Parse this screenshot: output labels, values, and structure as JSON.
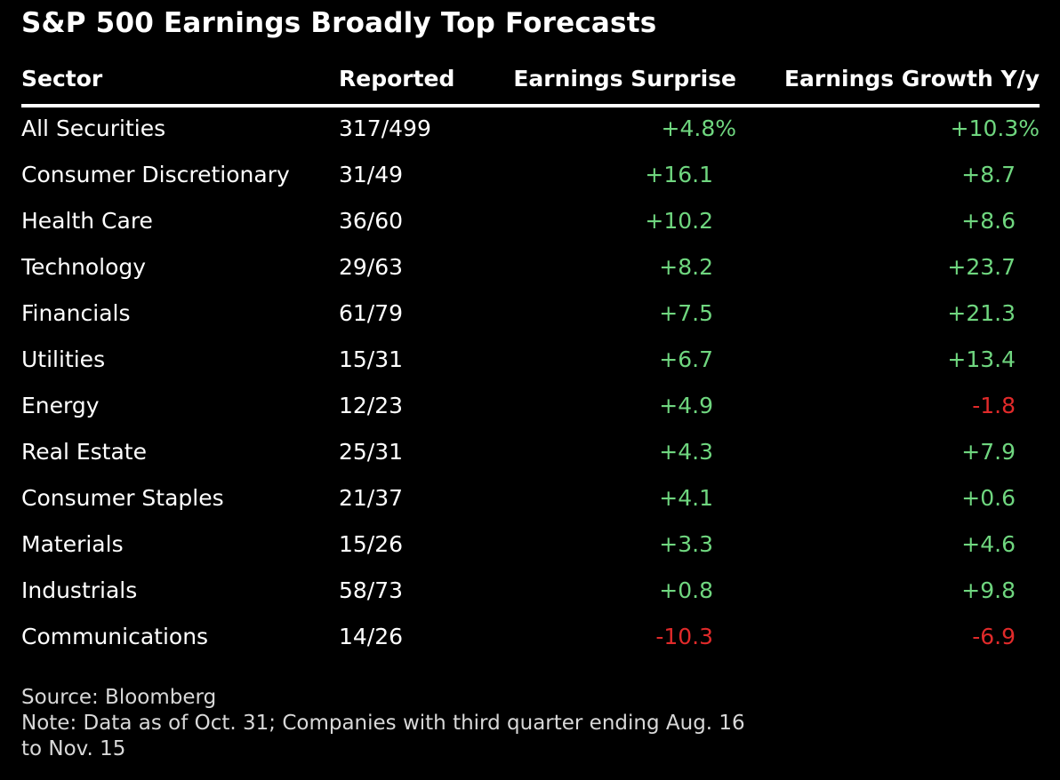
{
  "chart_data": {
    "type": "table",
    "title": "S&P 500 Earnings Broadly Top Forecasts",
    "columns": [
      "Sector",
      "Reported",
      "Earnings Surprise",
      "Earnings Growth Y/y"
    ],
    "rows": [
      {
        "sector": "All Securities",
        "reported": "317/499",
        "surprise": "+4.8%",
        "growth": "+10.3%"
      },
      {
        "sector": "Consumer Discretionary",
        "reported": "31/49",
        "surprise": "+16.1",
        "growth": "+8.7"
      },
      {
        "sector": "Health Care",
        "reported": "36/60",
        "surprise": "+10.2",
        "growth": "+8.6"
      },
      {
        "sector": "Technology",
        "reported": "29/63",
        "surprise": "+8.2",
        "growth": "+23.7"
      },
      {
        "sector": "Financials",
        "reported": "61/79",
        "surprise": "+7.5",
        "growth": "+21.3"
      },
      {
        "sector": "Utilities",
        "reported": "15/31",
        "surprise": "+6.7",
        "growth": "+13.4"
      },
      {
        "sector": "Energy",
        "reported": "12/23",
        "surprise": "+4.9",
        "growth": "-1.8"
      },
      {
        "sector": "Real Estate",
        "reported": "25/31",
        "surprise": "+4.3",
        "growth": "+7.9"
      },
      {
        "sector": "Consumer Staples",
        "reported": "21/37",
        "surprise": "+4.1",
        "growth": "+0.6"
      },
      {
        "sector": "Materials",
        "reported": "15/26",
        "surprise": "+3.3",
        "growth": "+4.6"
      },
      {
        "sector": "Industrials",
        "reported": "58/73",
        "surprise": "+0.8",
        "growth": "+9.8"
      },
      {
        "sector": "Communications",
        "reported": "14/26",
        "surprise": "-10.3",
        "growth": "-6.9"
      }
    ],
    "source": "Source: Bloomberg",
    "note_line1": "Note: Data as of Oct. 31; Companies with third quarter ending Aug. 16",
    "note_line2": "to Nov. 15"
  },
  "colors": {
    "positive": "#6fd67f",
    "negative": "#e02a2a",
    "background": "#000000",
    "text": "#ffffff"
  }
}
